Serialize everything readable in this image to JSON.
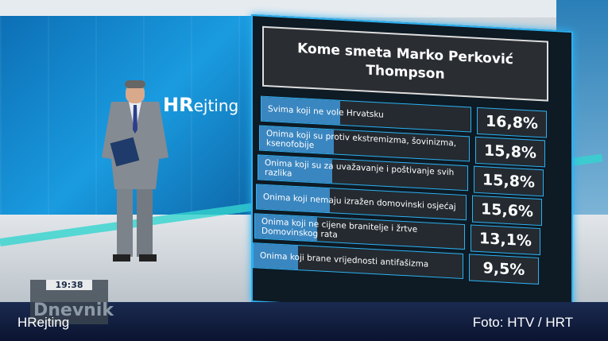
{
  "studio_logo": {
    "hr": "HR",
    "rest": "ejting"
  },
  "chart_data": {
    "type": "bar",
    "title": "Kome smeta Marko Perković Thompson",
    "categories": [
      "Svima koji ne vole Hrvatsku",
      "Onima koji su protiv ekstremizma, šovinizma, ksenofobije",
      "Onima koji su za uvažavanje i poštivanje svih razlika",
      "Onima koji nemaju izražen domovinski osjećaj",
      "Onima koji ne cijene branitelje i žrtve Domovinskog rata",
      "Onima koji brane vrijednosti antifašizma"
    ],
    "values": [
      16.8,
      15.8,
      15.8,
      15.6,
      13.1,
      9.5
    ],
    "value_labels": [
      "16,8%",
      "15,8%",
      "15,8%",
      "15,6%",
      "13,1%",
      "9,5%"
    ],
    "unit": "%",
    "colors": {
      "fill": "#3a86c0",
      "panel": "#242a30",
      "border": "#2bb0f0"
    }
  },
  "overlay": {
    "time": "19:38",
    "show": "Dnevnik",
    "caption_left": "HRejting",
    "caption_right": "Foto: HTV / HRT"
  }
}
